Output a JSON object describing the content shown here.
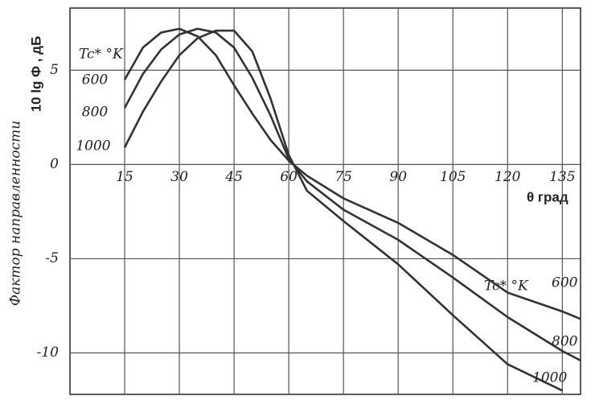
{
  "chart_data": {
    "type": "line",
    "y_label": "10 lg Φ , дБ",
    "y_label_2": "Фактор направленности",
    "x_label": "θ град",
    "legend_title": "Tc* °K",
    "x": [
      15,
      20,
      25,
      30,
      35,
      40,
      45,
      50,
      55,
      60,
      65,
      75,
      90,
      105,
      120,
      135,
      140
    ],
    "series": [
      {
        "name": "600",
        "color": "#333333",
        "values": [
          4.5,
          6.2,
          7.0,
          7.2,
          6.8,
          5.8,
          4.2,
          2.7,
          1.3,
          0.2,
          -0.6,
          -1.8,
          -3.1,
          -4.8,
          -6.8,
          -7.8,
          -8.2
        ]
      },
      {
        "name": "800",
        "color": "#333333",
        "values": [
          3.0,
          4.8,
          6.1,
          6.9,
          7.2,
          7.0,
          6.2,
          4.6,
          2.6,
          0.3,
          -0.9,
          -2.4,
          -4.0,
          -6.0,
          -8.1,
          -9.9,
          -10.4
        ]
      },
      {
        "name": "1000",
        "color": "#333333",
        "values": [
          0.9,
          2.8,
          4.4,
          5.8,
          6.7,
          7.1,
          7.1,
          6.0,
          3.5,
          0.5,
          -1.4,
          -3.0,
          -5.3,
          -8.0,
          -10.6,
          -12.0,
          null
        ]
      }
    ],
    "xlim": [
      0,
      140
    ],
    "ylim": [
      -12.2,
      8.3
    ],
    "xticks": [
      15,
      30,
      45,
      60,
      75,
      90,
      105,
      120,
      135
    ],
    "yticks": [
      -10,
      -5,
      0,
      5
    ],
    "grid": true
  }
}
